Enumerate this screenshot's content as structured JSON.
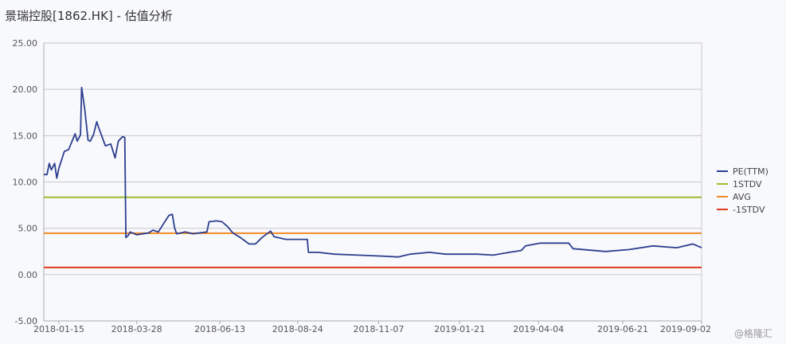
{
  "title": "景瑞控股[1862.HK] - 估值分析",
  "watermark": "@格隆汇",
  "chart_data": {
    "type": "line",
    "title": "景瑞控股[1862.HK] - 估值分析",
    "xlabel": "",
    "ylabel": "",
    "ylim": [
      -5,
      25
    ],
    "xlim": [
      "2018-01-01",
      "2019-09-02"
    ],
    "yticks": [
      "25.00",
      "20.00",
      "15.00",
      "10.00",
      "5.00",
      "0.00",
      "-5.00"
    ],
    "xticks": [
      "2018-01-15",
      "2018-03-28",
      "2018-06-13",
      "2018-08-24",
      "2018-11-07",
      "2019-01-21",
      "2019-04-04",
      "2019-06-21",
      "2019-09-02"
    ],
    "grid": "horizontal",
    "legend_position": "right",
    "series": [
      {
        "name": "PE(TTM)",
        "color": "#2c3e8f",
        "points": [
          [
            "2018-01-01",
            10.8
          ],
          [
            "2018-01-04",
            10.8
          ],
          [
            "2018-01-06",
            12.0
          ],
          [
            "2018-01-08",
            11.3
          ],
          [
            "2018-01-11",
            12.0
          ],
          [
            "2018-01-13",
            10.4
          ],
          [
            "2018-01-15",
            11.5
          ],
          [
            "2018-01-20",
            13.3
          ],
          [
            "2018-01-24",
            13.5
          ],
          [
            "2018-01-30",
            15.2
          ],
          [
            "2018-02-01",
            14.4
          ],
          [
            "2018-02-04",
            15.1
          ],
          [
            "2018-02-05",
            20.2
          ],
          [
            "2018-02-08",
            17.8
          ],
          [
            "2018-02-11",
            14.5
          ],
          [
            "2018-02-13",
            14.4
          ],
          [
            "2018-02-16",
            15.1
          ],
          [
            "2018-02-19",
            16.5
          ],
          [
            "2018-02-21",
            15.8
          ],
          [
            "2018-02-27",
            13.9
          ],
          [
            "2018-03-04",
            14.1
          ],
          [
            "2018-03-08",
            12.6
          ],
          [
            "2018-03-11",
            14.4
          ],
          [
            "2018-03-15",
            14.9
          ],
          [
            "2018-03-17",
            14.8
          ],
          [
            "2018-03-18",
            4.0
          ],
          [
            "2018-03-20",
            4.2
          ],
          [
            "2018-03-22",
            4.6
          ],
          [
            "2018-03-28",
            4.3
          ],
          [
            "2018-04-08",
            4.5
          ],
          [
            "2018-04-12",
            4.8
          ],
          [
            "2018-04-17",
            4.6
          ],
          [
            "2018-04-23",
            5.7
          ],
          [
            "2018-04-27",
            6.4
          ],
          [
            "2018-04-30",
            6.5
          ],
          [
            "2018-05-02",
            5.1
          ],
          [
            "2018-05-04",
            4.4
          ],
          [
            "2018-05-12",
            4.6
          ],
          [
            "2018-05-19",
            4.4
          ],
          [
            "2018-06-01",
            4.6
          ],
          [
            "2018-06-03",
            5.7
          ],
          [
            "2018-06-10",
            5.8
          ],
          [
            "2018-06-15",
            5.7
          ],
          [
            "2018-06-20",
            5.2
          ],
          [
            "2018-06-25",
            4.5
          ],
          [
            "2018-07-02",
            4.0
          ],
          [
            "2018-07-10",
            3.3
          ],
          [
            "2018-07-16",
            3.3
          ],
          [
            "2018-07-22",
            4.0
          ],
          [
            "2018-07-30",
            4.7
          ],
          [
            "2018-08-02",
            4.1
          ],
          [
            "2018-08-13",
            3.8
          ],
          [
            "2018-09-02",
            3.8
          ],
          [
            "2018-09-03",
            2.4
          ],
          [
            "2018-09-12",
            2.4
          ],
          [
            "2018-09-27",
            2.2
          ],
          [
            "2018-10-19",
            2.1
          ],
          [
            "2018-11-10",
            2.0
          ],
          [
            "2018-11-25",
            1.9
          ],
          [
            "2018-12-06",
            2.2
          ],
          [
            "2018-12-24",
            2.4
          ],
          [
            "2019-01-08",
            2.2
          ],
          [
            "2019-02-06",
            2.2
          ],
          [
            "2019-02-21",
            2.1
          ],
          [
            "2019-03-08",
            2.4
          ],
          [
            "2019-03-19",
            2.6
          ],
          [
            "2019-03-23",
            3.1
          ],
          [
            "2019-04-06",
            3.4
          ],
          [
            "2019-05-02",
            3.4
          ],
          [
            "2019-05-06",
            2.8
          ],
          [
            "2019-06-05",
            2.5
          ],
          [
            "2019-06-27",
            2.7
          ],
          [
            "2019-07-19",
            3.1
          ],
          [
            "2019-08-10",
            2.9
          ],
          [
            "2019-08-25",
            3.3
          ],
          [
            "2019-09-02",
            2.9
          ]
        ]
      },
      {
        "name": "1STDV",
        "color": "#9bbb2c",
        "constant": 8.35
      },
      {
        "name": "AVG",
        "color": "#f28c28",
        "constant": 4.47
      },
      {
        "name": "-1STDV",
        "color": "#e03a1e",
        "constant": 0.77
      }
    ]
  }
}
